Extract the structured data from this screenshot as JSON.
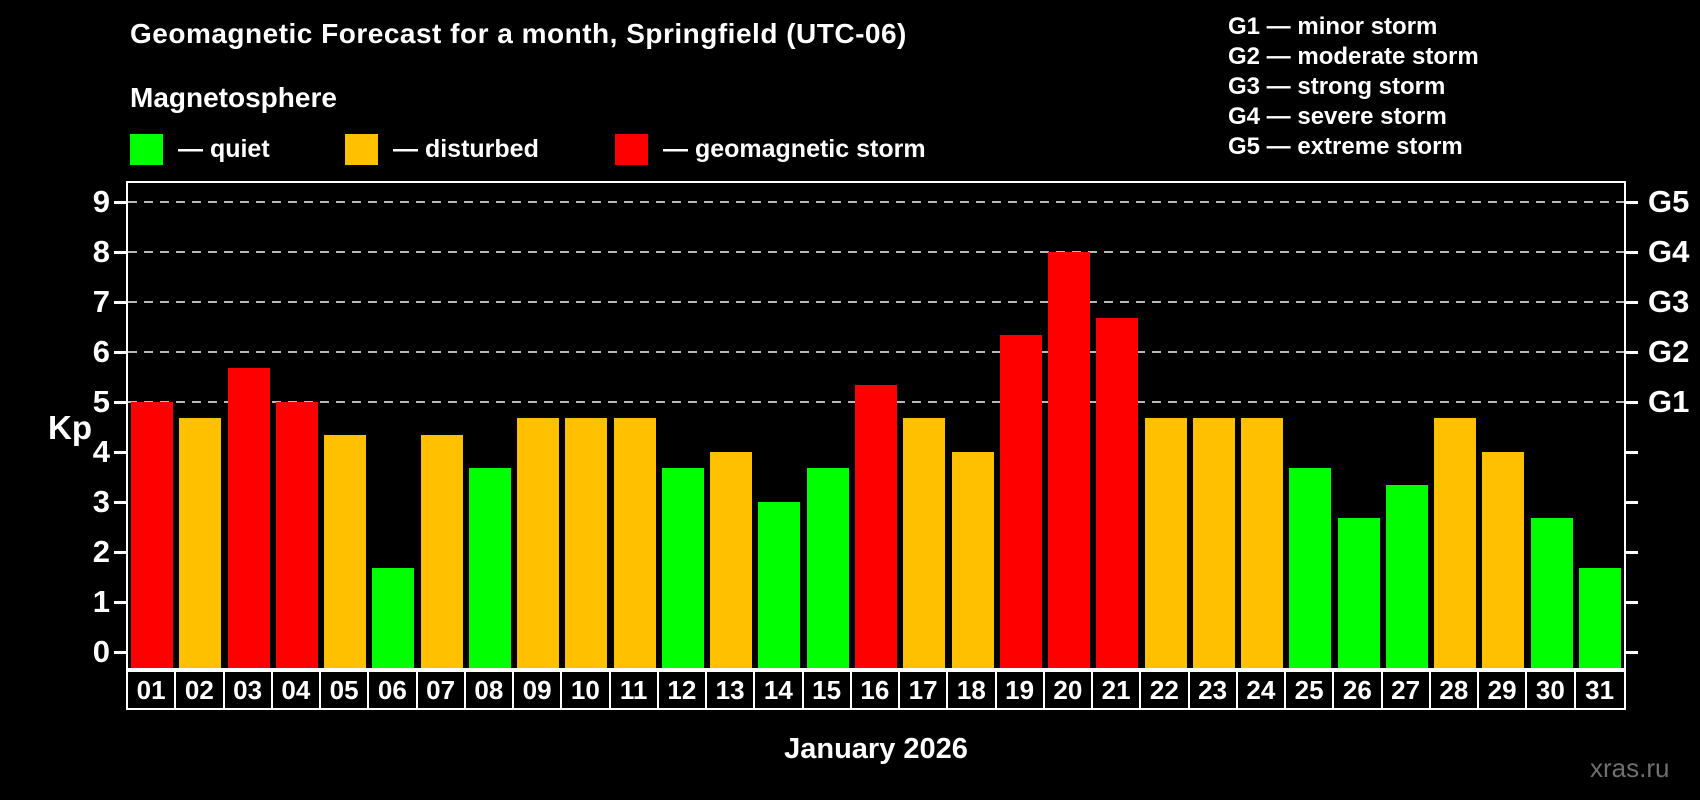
{
  "header": {
    "title": "Geomagnetic Forecast for a month, Springfield (UTC-06)",
    "subtitle": "Magnetosphere"
  },
  "legend": {
    "items": [
      {
        "label": "— quiet",
        "status": "quiet"
      },
      {
        "label": "— disturbed",
        "status": "disturbed"
      },
      {
        "label": "— geomagnetic storm",
        "status": "storm"
      }
    ]
  },
  "storm_scale_legend": {
    "items": [
      "G1 — minor storm",
      "G2 — moderate storm",
      "G3 — strong storm",
      "G4 — severe storm",
      "G5 — extreme storm"
    ]
  },
  "axes": {
    "y_left_label": "Kp",
    "y_left_ticks": [
      0,
      1,
      2,
      3,
      4,
      5,
      6,
      7,
      8,
      9
    ],
    "y_right_ticks": [
      {
        "value": 5,
        "label": "G1"
      },
      {
        "value": 6,
        "label": "G2"
      },
      {
        "value": 7,
        "label": "G3"
      },
      {
        "value": 8,
        "label": "G4"
      },
      {
        "value": 9,
        "label": "G5"
      }
    ],
    "x_label": "January 2026"
  },
  "watermark": "xras.ru",
  "colors": {
    "quiet": "#00FF00",
    "disturbed": "#FFC000",
    "storm": "#FF0000",
    "grid": "#B8B8B8",
    "frame": "#FFFFFF",
    "background": "#000000",
    "watermark_color": "#6F6F6F"
  },
  "chart_data": {
    "type": "bar",
    "title": "Geomagnetic Forecast for a month, Springfield (UTC-06)",
    "xlabel": "January 2026",
    "ylabel": "Kp",
    "ylim": [
      0,
      9
    ],
    "grid_kp": [
      5,
      6,
      7,
      8,
      9
    ],
    "legend_position": "top",
    "categories": [
      "01",
      "02",
      "03",
      "04",
      "05",
      "06",
      "07",
      "08",
      "09",
      "10",
      "11",
      "12",
      "13",
      "14",
      "15",
      "16",
      "17",
      "18",
      "19",
      "20",
      "21",
      "22",
      "23",
      "24",
      "25",
      "26",
      "27",
      "28",
      "29",
      "30",
      "31"
    ],
    "values": [
      5,
      4.67,
      5.67,
      5,
      4.33,
      1.67,
      4.33,
      3.67,
      4.67,
      4.67,
      4.67,
      3.67,
      4,
      3,
      3.67,
      5.33,
      4.67,
      4,
      6.33,
      8,
      6.67,
      4.67,
      4.67,
      4.67,
      3.67,
      2.67,
      3.33,
      4.67,
      4,
      2.67,
      1.67
    ],
    "statuses": [
      "storm",
      "disturbed",
      "storm",
      "storm",
      "disturbed",
      "quiet",
      "disturbed",
      "quiet",
      "disturbed",
      "disturbed",
      "disturbed",
      "quiet",
      "disturbed",
      "quiet",
      "quiet",
      "storm",
      "disturbed",
      "disturbed",
      "storm",
      "storm",
      "storm",
      "disturbed",
      "disturbed",
      "disturbed",
      "quiet",
      "quiet",
      "quiet",
      "disturbed",
      "disturbed",
      "quiet",
      "quiet"
    ]
  }
}
